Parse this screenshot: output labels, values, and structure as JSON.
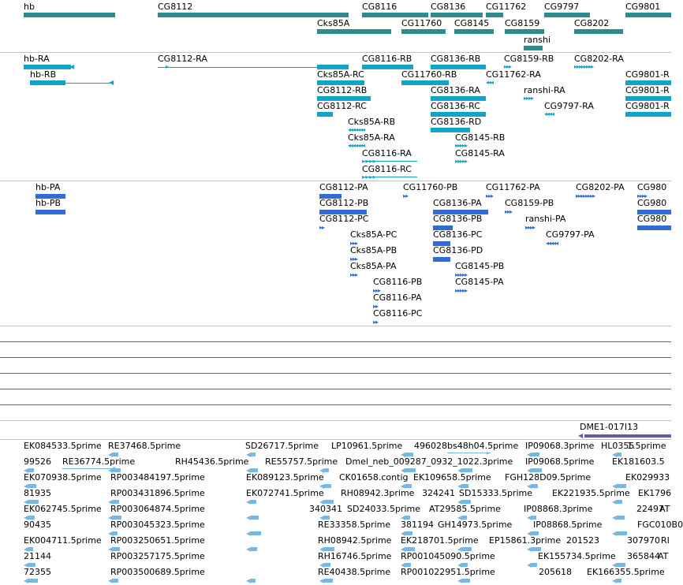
{
  "colors": {
    "gene": "#2e8b8b",
    "transcript": "#11a3c9",
    "protein": "#2f6dd3",
    "est": "#79b7e0",
    "clone_line": "#6a5aa6",
    "clone": "#6a5aa6",
    "separator": "#c4c4c4"
  },
  "tracks": {
    "genes": {
      "labels": [
        "hb",
        "CG8112",
        "CG8116",
        "CG8136",
        "CG11762",
        "CG9797",
        "CG9801",
        "Cks85A",
        "CG11760",
        "CG8145",
        "CG8159",
        "CG8202",
        "ranshi"
      ]
    },
    "transcripts": {
      "labels": [
        "hb-RA",
        "CG8112-RA",
        "CG8116-RB",
        "CG8136-RB",
        "CG8159-RB",
        "CG8202-RA",
        "hb-RB",
        "Cks85A-RC",
        "CG11760-RB",
        "CG11762-RA",
        "CG9801-R",
        "CG8112-RB",
        "CG8136-RA",
        "ranshi-RA",
        "CG9801-R",
        "CG8112-RC",
        "CG8136-RC",
        "CG9797-RA",
        "CG9801-R",
        "Cks85A-RB",
        "CG8136-RD",
        "Cks85A-RA",
        "CG8145-RB",
        "CG8116-RA",
        "CG8145-RA",
        "CG8116-RC"
      ]
    },
    "proteins": {
      "labels": [
        "hb-PA",
        "CG8112-PA",
        "CG11760-PB",
        "CG11762-PA",
        "CG8202-PA",
        "CG980",
        "hb-PB",
        "CG8112-PB",
        "CG8136-PA",
        "CG8159-PB",
        "CG980",
        "CG8112-PC",
        "CG8136-PB",
        "ranshi-PA",
        "CG980",
        "CG8136-PC",
        "CG9797-PA",
        "Cks85A-PC",
        "Cks85A-PB",
        "CG8136-PD",
        "Cks85A-PA",
        "CG8145-PB",
        "CG8116-PB",
        "CG8145-PA",
        "CG8116-PA",
        "CG8116-PC"
      ]
    },
    "clones": {
      "labels": [
        "DME1-017I13"
      ]
    },
    "ests": {
      "labels": [
        "EK084533.5prime",
        "RE37468.5prime",
        "SD26717.5prime",
        "LP10961.5prime",
        "496028",
        "bs48h04.5prime",
        "IP09068.3prime",
        "HL0355",
        "1.5prime",
        "99526",
        "RE36774.5prime",
        "RH45436.5prime",
        "RE55757.5prime",
        "Dmel_neb_009287_0932_1022.3prime",
        "IP09068.5prime",
        "EK181603.5",
        "EK070938.5prime",
        "RP003484197.5prime",
        "EK089123.5prime",
        "CK01658.contig",
        "EK109658.5prime",
        "FGH128D09.5prime",
        "EK029933",
        "81935",
        "RP003431896.5prime",
        "EK072741.5prime",
        "RH08942.3prime",
        "324241",
        "SD15333.5prime",
        "EK221935.5prime",
        "EK1796",
        "EK062745.5prime",
        "RP003064874.5prime",
        "340341",
        "SD24033.5prime",
        "AT29585.5prime",
        "IP08868.3prime",
        "22497",
        "AT",
        "90435",
        "RP003045323.5prime",
        "RE33358.5prime",
        "381194",
        "GH14973.5prime",
        "IP08868.5prime",
        "FGC010B0",
        "EK004711.5prime",
        "RP003250651.5prime",
        "RH08942.5prime",
        "EK218701.5prime",
        "EP15861.3prime",
        "201523",
        "307970",
        "RI",
        "21144",
        "RP003257175.5prime",
        "RH16746.5prime",
        "RP001045090.5prime",
        "EK155734.5prime",
        "365844",
        "AT",
        "72355",
        "RP003500689.5prime",
        "RE40438.5prime",
        "RP001022951.5prime",
        "205618",
        "EK166355.5prime"
      ]
    }
  }
}
